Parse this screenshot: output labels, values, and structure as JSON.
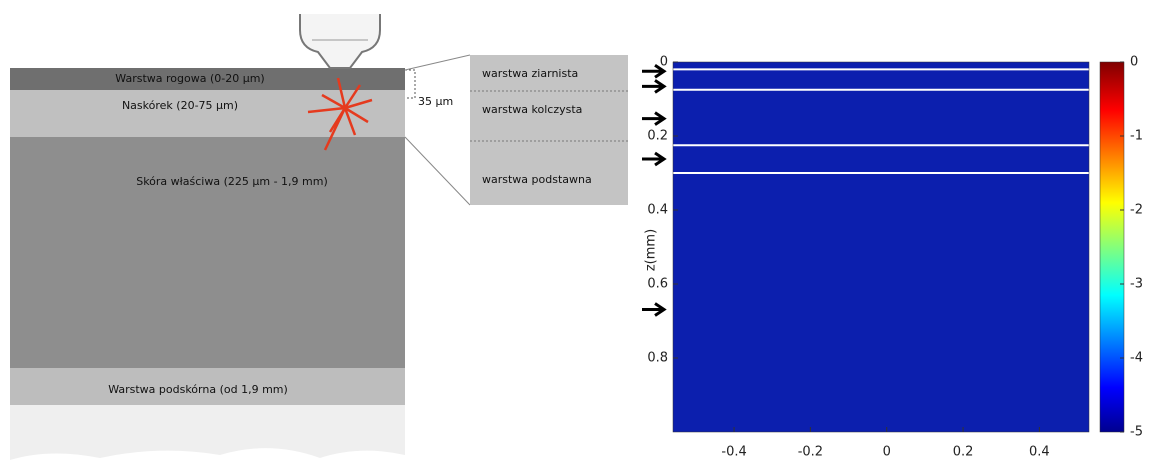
{
  "diagram": {
    "layers": [
      "Warstwa rogowa (0-20 µm)",
      "Naskórek (20-75 µm)",
      "Skóra właściwa (225 µm - 1,9 mm)",
      "Warstwa podskórna (od 1,9 mm)"
    ],
    "depth_label": "35 µm",
    "inset": [
      "warstwa ziarnista",
      "warstwa kolczysta",
      "warstwa podstawna"
    ]
  },
  "chart_data": {
    "type": "heatmap",
    "ylabel": "z(mm)",
    "xlim": [
      -0.56,
      0.53
    ],
    "xticks": [
      -0.4,
      -0.2,
      0,
      0.2,
      0.4
    ],
    "ylim": [
      0,
      1
    ],
    "yticks": [
      0,
      0.2,
      0.4,
      0.6,
      0.8
    ],
    "layer_lines": [
      0.02,
      0.075,
      0.225,
      0.3
    ],
    "arrows": [
      0.025,
      0.066,
      0.153,
      0.262,
      0.669
    ],
    "colorbar": {
      "lim": [
        -5,
        0
      ],
      "ticks": [
        0,
        -1,
        -2,
        -3,
        -4,
        -5
      ]
    }
  }
}
